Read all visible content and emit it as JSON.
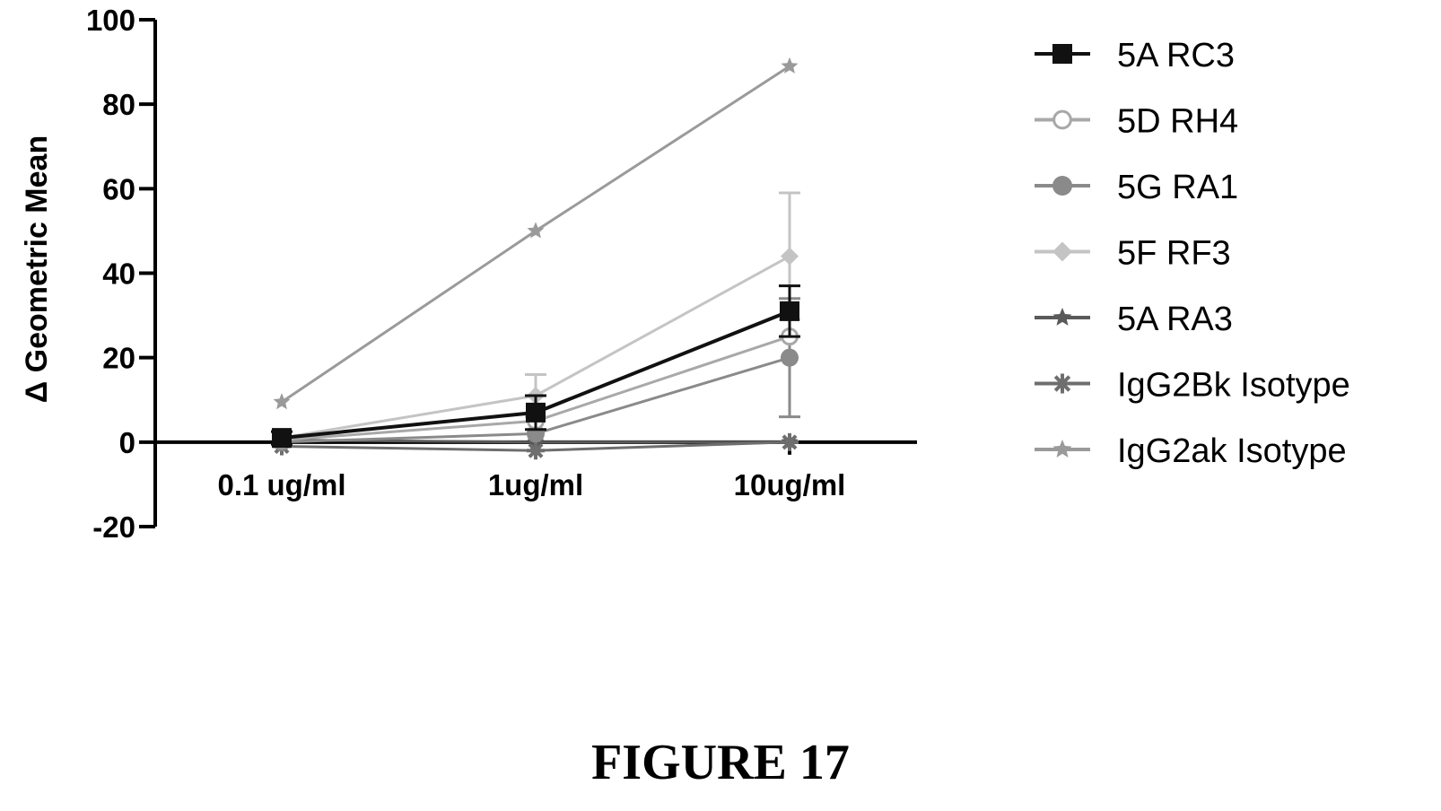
{
  "chart_data": {
    "type": "line",
    "categories": [
      "0.1 ug/ml",
      "1ug/ml",
      "10ug/ml"
    ],
    "ylabel": "Δ Geometric Mean",
    "ylim": [
      -20,
      100
    ],
    "yticks": [
      -20,
      0,
      20,
      40,
      60,
      80,
      100
    ],
    "legend_position": "right",
    "series": [
      {
        "name": "5A RC3",
        "marker": "square",
        "color": "#111111",
        "values": [
          1,
          7,
          31
        ],
        "error": [
          1.5,
          4,
          6
        ]
      },
      {
        "name": "5D RH4",
        "marker": "circle-open",
        "color": "#a8a8a8",
        "values": [
          0.5,
          5,
          25
        ],
        "error": [
          0,
          0,
          0
        ]
      },
      {
        "name": "5G RA1",
        "marker": "circle",
        "color": "#8a8a8a",
        "values": [
          0,
          2,
          20
        ],
        "error": [
          0,
          0,
          14
        ]
      },
      {
        "name": "5F RF3",
        "marker": "diamond",
        "color": "#c4c4c4",
        "values": [
          1,
          11,
          44
        ],
        "error": [
          0,
          5,
          15
        ]
      },
      {
        "name": "5A RA3",
        "marker": "star",
        "color": "#5a5a5a",
        "values": [
          0.5,
          0,
          0
        ],
        "error": [
          0,
          0,
          0
        ]
      },
      {
        "name": "IgG2Bk Isotype",
        "marker": "asterisk",
        "color": "#6e6e6e",
        "values": [
          -1,
          -2,
          0
        ],
        "error": [
          0,
          0,
          0
        ]
      },
      {
        "name": "IgG2ak Isotype",
        "marker": "star",
        "color": "#9a9a9a",
        "values": [
          9.5,
          50,
          89
        ],
        "error": [
          0,
          0,
          0
        ]
      }
    ]
  },
  "figure_caption": "FIGURE 17"
}
